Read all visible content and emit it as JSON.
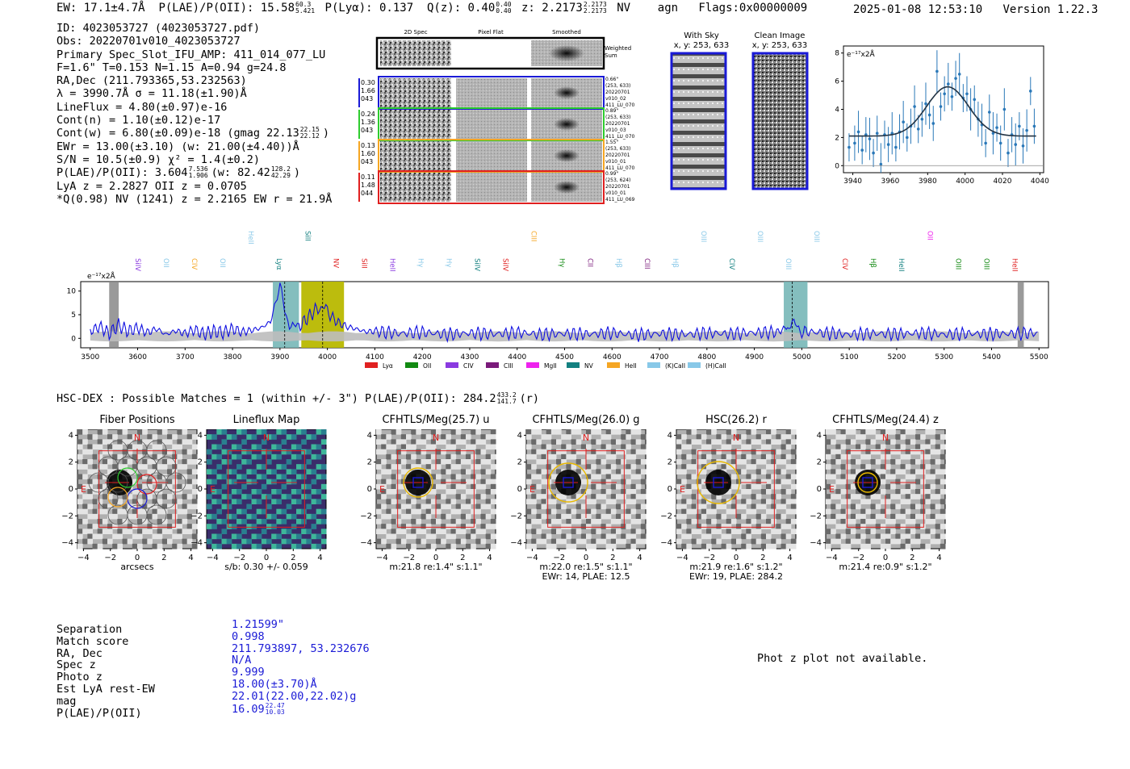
{
  "header": {
    "ew": "EW: 17.1±4.7Å",
    "plae_label": "P(LAE)/P(OII): 15.58",
    "plae_hi": "60.3",
    "plae_lo": "5.421",
    "plya": "P(Lyα): 0.137",
    "qz_label": "Q(z): 0.40",
    "qz_hi": "0.40",
    "qz_lo": "0.40",
    "z_label": "z: 2.2173",
    "z_hi": "2.2173",
    "z_lo": "2.2173",
    "line": "NV",
    "type": "agn",
    "flags": "Flags:0x00000009",
    "datetime": "2025-01-08 12:53:10",
    "version": "Version 1.22.3"
  },
  "info": {
    "id": "ID: 4023053727 (4023053727.pdf)",
    "obs": "Obs: 20220701v010_4023053727",
    "primary": "Primary Spec_Slot_IFU_AMP: 411_014_077_LU",
    "fwhm": "F=1.6\"  T=0.153  N=1.15  A=0.94  g=24.8",
    "radec": "RA,Dec (211.793365,53.232563)",
    "lambda_sigma": "λ = 3990.7Å   σ = 11.18(±1.90)Å",
    "lineflux": "LineFlux = 4.80(±0.97)e-16",
    "cont_n": "Cont(n) = 1.10(±0.12)e-17",
    "cont_w": "Cont(w) = 6.80(±0.09)e-18 (gmag 22.13",
    "cont_w_hi": "22.15",
    "cont_w_lo": "22.12",
    "cont_w_end": ")",
    "ewr": "EWr = 13.00(±3.10) (w: 21.00(±4.40))Å",
    "sn": "S/N = 10.5(±0.9)  χ² = 1.4(±0.2)",
    "plae2": "P(LAE)/P(OII): 3.604",
    "plae2_hi": "7.536",
    "plae2_lo": "1.906",
    "plae2_w": "(w: 82.42",
    "plae2_w_hi": "128.2",
    "plae2_w_lo": "42.29",
    "plae2_end": ")",
    "lya_z": "LyA z = 2.2827   OII z = 0.0705",
    "qline": "*Q(0.98) NV  (1241) z = 2.2165  EW r = 21.9Å"
  },
  "cutouts": {
    "col_2d": "2D Spec",
    "col_flat": "Pixel Flat",
    "col_smooth": "Smoothed",
    "weighted": "Weighted",
    "sum": "Sum",
    "rows": [
      {
        "w1": "0.30",
        "w2": "1.66",
        "w3": "043",
        "sep": "0.66\"",
        "xy": "(253, 633)",
        "obs": "20220701",
        "shot": "v010_02",
        "amp": "411_LU_070",
        "color": "#1a1ad6"
      },
      {
        "w1": "0.24",
        "w2": "1.36",
        "w3": "043",
        "sep": "0.89\"",
        "xy": "(253, 633)",
        "obs": "20220701",
        "shot": "v010_03",
        "amp": "411_LU_070",
        "color": "#2ecc2e"
      },
      {
        "w1": "0.13",
        "w2": "1.60",
        "w3": "043",
        "sep": "1.55\"",
        "xy": "(253, 633)",
        "obs": "20220701",
        "shot": "v010_01",
        "amp": "411_LU_070",
        "color": "#f5a623"
      },
      {
        "w1": "0.11",
        "w2": "1.48",
        "w3": "044",
        "sep": "0.99\"",
        "xy": "(253, 624)",
        "obs": "20220701",
        "shot": "v010_01",
        "amp": "411_LU_069",
        "color": "#e02020"
      }
    ]
  },
  "sky": {
    "with_sky": "With Sky",
    "with_sky_xy": "x, y: 253, 633",
    "clean": "Clean Image",
    "clean_xy": "x, y: 253, 633"
  },
  "line_fit": {
    "scale": "e⁻¹⁷x2Å",
    "xticks": [
      "3940",
      "3960",
      "3980",
      "4000",
      "4020",
      "4040"
    ],
    "yticks": [
      "0",
      "2",
      "4",
      "6",
      "8"
    ]
  },
  "spectrum": {
    "scale": "e⁻¹⁷x2Å",
    "xticks": [
      "3500",
      "3600",
      "3700",
      "3800",
      "3900",
      "4000",
      "4100",
      "4200",
      "4300",
      "4400",
      "4500",
      "4600",
      "4700",
      "4800",
      "4900",
      "5000",
      "5100",
      "5200",
      "5300",
      "5400",
      "5500"
    ],
    "yticks": [
      "0",
      "5",
      "10"
    ],
    "legend": [
      {
        "label": "Lyα",
        "color": "#e02020"
      },
      {
        "label": "OII",
        "color": "#128a12"
      },
      {
        "label": "CIV",
        "color": "#8a3ae0"
      },
      {
        "label": "CIII",
        "color": "#7a1a7a"
      },
      {
        "label": "MgII",
        "color": "#ee22ee"
      },
      {
        "label": "NV",
        "color": "#138080"
      },
      {
        "label": "HeII",
        "color": "#f5a623"
      },
      {
        "label": "(K)CaII",
        "color": "#88c8e8"
      },
      {
        "label": "(H)CaII",
        "color": "#88c8e8"
      }
    ],
    "line_labels": [
      {
        "t": "SiIV",
        "c": "#8a3ae0",
        "row": "lo"
      },
      {
        "t": "OII",
        "c": "#88c8e8",
        "row": "lo"
      },
      {
        "t": "CIV",
        "c": "#f5a623",
        "row": "lo"
      },
      {
        "t": "OII",
        "c": "#88c8e8",
        "row": "lo"
      },
      {
        "t": "HeII",
        "c": "#88c8e8",
        "row": "hi"
      },
      {
        "t": "Lyα",
        "c": "#138080",
        "row": "lo"
      },
      {
        "t": "SiII",
        "c": "#138080",
        "row": "hi"
      },
      {
        "t": "NV",
        "c": "#e02020",
        "row": "lo"
      },
      {
        "t": "SiII",
        "c": "#e02020",
        "row": "lo"
      },
      {
        "t": "HeII",
        "c": "#8a3ae0",
        "row": "lo"
      },
      {
        "t": "Hγ",
        "c": "#88c8e8",
        "row": "lo"
      },
      {
        "t": "Hγ",
        "c": "#88c8e8",
        "row": "lo"
      },
      {
        "t": "SiIV",
        "c": "#138080",
        "row": "lo"
      },
      {
        "t": "SiIV",
        "c": "#e02020",
        "row": "lo"
      },
      {
        "t": "CIII",
        "c": "#f5a623",
        "row": "hi"
      },
      {
        "t": "Hγ",
        "c": "#128a12",
        "row": "lo"
      },
      {
        "t": "CII",
        "c": "#7a1a7a",
        "row": "lo"
      },
      {
        "t": "Hβ",
        "c": "#88c8e8",
        "row": "lo"
      },
      {
        "t": "CIII",
        "c": "#7a1a7a",
        "row": "lo"
      },
      {
        "t": "Hβ",
        "c": "#88c8e8",
        "row": "lo"
      },
      {
        "t": "OIII",
        "c": "#88c8e8",
        "row": "hi"
      },
      {
        "t": "CIV",
        "c": "#138080",
        "row": "lo"
      },
      {
        "t": "OIII",
        "c": "#88c8e8",
        "row": "hi"
      },
      {
        "t": "OIII",
        "c": "#88c8e8",
        "row": "lo"
      },
      {
        "t": "OIII",
        "c": "#88c8e8",
        "row": "hi"
      },
      {
        "t": "CIV",
        "c": "#e02020",
        "row": "lo"
      },
      {
        "t": "Hβ",
        "c": "#128a12",
        "row": "lo"
      },
      {
        "t": "HeII",
        "c": "#138080",
        "row": "lo"
      },
      {
        "t": "OII",
        "c": "#ee22ee",
        "row": "hi"
      },
      {
        "t": "OIII",
        "c": "#128a12",
        "row": "lo"
      },
      {
        "t": "OIII",
        "c": "#128a12",
        "row": "lo"
      },
      {
        "t": "HeII",
        "c": "#e02020",
        "row": "lo"
      }
    ]
  },
  "hscdex": {
    "title": "HSC-DEX : Possible Matches = 1 (within +/- 3\")  P(LAE)/P(OII): 284.2",
    "hi": "433.2",
    "lo": "141.7",
    "end": "(r)"
  },
  "panels": [
    {
      "title": "Fiber Positions",
      "cap1": "arcsecs",
      "cap2": ""
    },
    {
      "title": "Lineflux Map",
      "cap1": "s/b: 0.30 +/- 0.059",
      "cap2": ""
    },
    {
      "title": "CFHTLS/Meg(25.7) u",
      "cap1": "m:21.8  re:1.4\"  s:1.1\"",
      "cap2": ""
    },
    {
      "title": "CFHTLS/Meg(26.0) g",
      "cap1": "m:22.0  re:1.5\"  s:1.1\"",
      "cap2": "EWr: 14, PLAE: 12.5"
    },
    {
      "title": "HSC(26.2) r",
      "cap1": "m:21.9  re:1.6\"  s:1.2\"",
      "cap2": "EWr: 19, PLAE: 284.2"
    },
    {
      "title": "CFHTLS/Meg(24.4) z",
      "cap1": "m:21.4  re:0.9\"  s:1.2\"",
      "cap2": ""
    }
  ],
  "panel_axis": {
    "ticks": [
      "−4",
      "−2",
      "0",
      "2",
      "4"
    ],
    "north": "N",
    "east": "E"
  },
  "match": {
    "labels": [
      "Separation",
      "Match score",
      "RA, Dec",
      "Spec z",
      "Photo z",
      "Est LyA rest-EW",
      "mag",
      "P(LAE)/P(OII)"
    ],
    "separation": "1.21599\"",
    "score": "0.998",
    "radec": "211.793897, 53.232676",
    "spec_z": "N/A",
    "photo_z": "9.999",
    "ew": "18.00(±3.70)Å",
    "mag": "22.01(22.00,22.02)g",
    "plae": "16.09",
    "plae_hi": "22.47",
    "plae_lo": "10.03"
  },
  "phot_z_note": "Phot z plot not available.",
  "chart_data": [
    {
      "type": "scatter",
      "title": "",
      "ylabel": "e-17x2Å",
      "xlim": [
        3935,
        4042
      ],
      "ylim": [
        -0.5,
        8.5
      ],
      "x": [
        3938,
        3941,
        3943,
        3945,
        3947,
        3949,
        3951,
        3953,
        3955,
        3957,
        3959,
        3961,
        3963,
        3965,
        3967,
        3969,
        3971,
        3973,
        3975,
        3977,
        3979,
        3981,
        3983,
        3985,
        3987,
        3989,
        3991,
        3993,
        3995,
        3997,
        3999,
        4001,
        4003,
        4005,
        4007,
        4009,
        4011,
        4013,
        4015,
        4017,
        4019,
        4021,
        4023,
        4025,
        4027,
        4029,
        4031,
        4033,
        4035,
        4037
      ],
      "values": [
        1.3,
        1.6,
        2.4,
        1.1,
        2.2,
        1.9,
        0.9,
        2.3,
        0.1,
        2.2,
        1.5,
        2.3,
        1.3,
        2.4,
        3.1,
        2.0,
        2.8,
        4.2,
        2.6,
        3.3,
        4.4,
        3.6,
        3.0,
        6.7,
        4.2,
        5.1,
        5.8,
        4.9,
        6.2,
        6.5,
        4.8,
        5.1,
        4.0,
        4.7,
        3.3,
        2.9,
        1.6,
        3.8,
        2.3,
        2.7,
        1.6,
        4.0,
        0.9,
        2.2,
        1.5,
        2.8,
        1.4,
        2.5,
        5.3,
        2.8
      ],
      "fit": {
        "type": "gaussian",
        "center": 3990.7,
        "sigma": 11.18,
        "amplitude": 3.5,
        "continuum": 2.1
      },
      "xticks": [
        3940,
        3960,
        3980,
        4000,
        4020,
        4040
      ],
      "yticks": [
        0,
        2,
        4,
        6,
        8
      ]
    },
    {
      "type": "line",
      "title": "",
      "ylabel": "e-17x2Å",
      "xlim": [
        3480,
        5520
      ],
      "ylim": [
        -2,
        12
      ],
      "x": [
        3500,
        3520,
        3540,
        3560,
        3580,
        3600,
        3620,
        3640,
        3660,
        3680,
        3700,
        3720,
        3740,
        3760,
        3780,
        3800,
        3820,
        3840,
        3860,
        3880,
        3900,
        3910,
        3920,
        3930,
        3940,
        3960,
        3980,
        3990,
        4000,
        4020,
        4040,
        4060,
        4080,
        4100,
        4150,
        4200,
        4250,
        4300,
        4350,
        4400,
        4450,
        4500,
        4550,
        4600,
        4650,
        4700,
        4750,
        4800,
        4850,
        4900,
        4950,
        4970,
        4980,
        4990,
        5000,
        5050,
        5100,
        5150,
        5200,
        5250,
        5300,
        5350,
        5400,
        5450,
        5500
      ],
      "values": [
        1.5,
        2.5,
        1.0,
        2.8,
        1.5,
        2.2,
        1.2,
        2.0,
        0.8,
        1.6,
        1.0,
        1.8,
        0.9,
        1.5,
        1.2,
        2.0,
        1.3,
        1.7,
        2.2,
        3.5,
        11.0,
        6.5,
        3.0,
        2.0,
        2.5,
        4.5,
        6.5,
        7.0,
        5.5,
        3.5,
        2.5,
        2.0,
        1.4,
        1.5,
        1.0,
        1.3,
        0.8,
        1.1,
        0.9,
        1.2,
        0.8,
        1.0,
        0.9,
        1.1,
        0.7,
        1.0,
        0.8,
        1.1,
        0.9,
        1.2,
        1.3,
        2.5,
        3.0,
        2.2,
        1.5,
        1.1,
        0.8,
        1.0,
        0.9,
        1.1,
        0.8,
        1.0,
        0.9,
        1.0,
        1.1
      ],
      "highlight_regions": [
        [
          3540,
          3560
        ],
        [
          3885,
          3940
        ],
        [
          3945,
          4035
        ],
        [
          4962,
          5012
        ],
        [
          5455,
          5468
        ]
      ],
      "markers": [
        3910,
        3990,
        4980
      ],
      "xticks": [
        3500,
        3600,
        3700,
        3800,
        3900,
        4000,
        4100,
        4200,
        4300,
        4400,
        4500,
        4600,
        4700,
        4800,
        4900,
        5000,
        5100,
        5200,
        5300,
        5400,
        5500
      ],
      "yticks": [
        0,
        5,
        10
      ]
    }
  ]
}
